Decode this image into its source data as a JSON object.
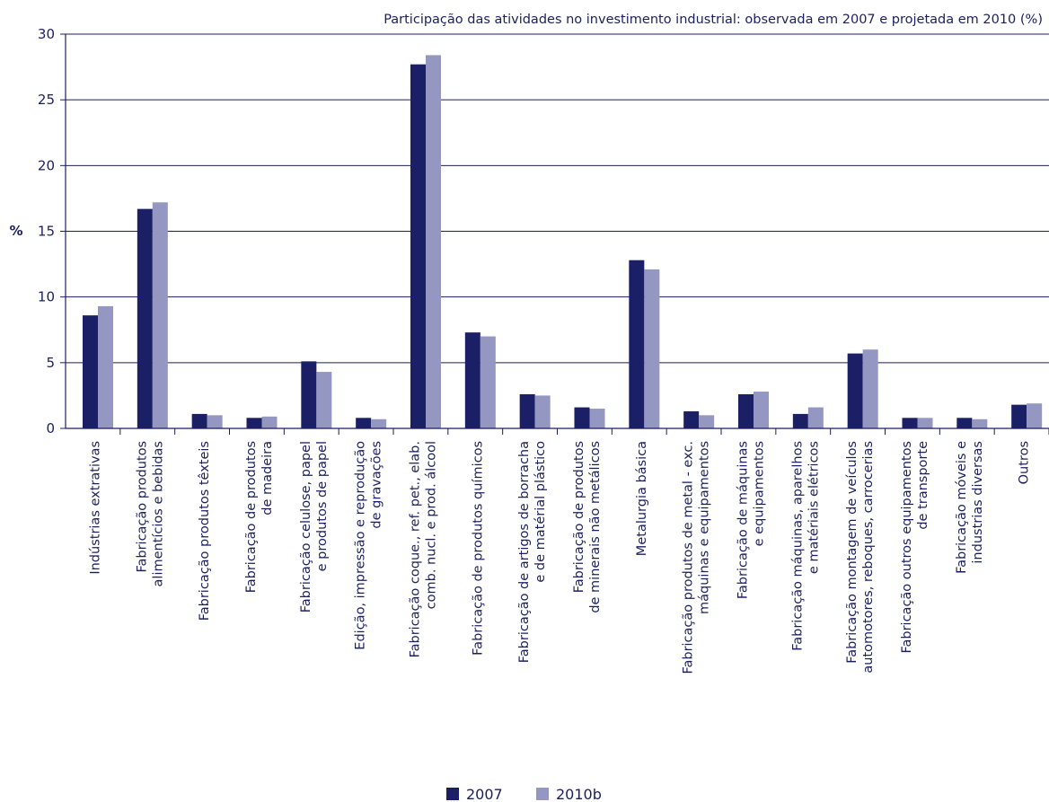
{
  "chart_data": {
    "type": "bar",
    "title": "Participação das atividades no investimento industrial: observada em 2007 e projetada em 2010  (%)",
    "ylabel": "%",
    "ylim": [
      0,
      30
    ],
    "yticks": [
      "0",
      "5",
      "10",
      "15",
      "20",
      "25",
      "30"
    ],
    "grid": true,
    "legend_position": "bottom-center",
    "categories": [
      [
        "Indústrias extrativas"
      ],
      [
        "Fabricação produtos",
        "alimentícios e bebidas"
      ],
      [
        "Fabricação produtos têxteis"
      ],
      [
        "Fabricação de produtos",
        "de madeira"
      ],
      [
        "Fabricação celulose, papel",
        "e produtos de papel"
      ],
      [
        "Edição, impressão e reprodução",
        "de gravações"
      ],
      [
        "Fabricação coque., ref. pet., elab.",
        "comb. nucl. e prod. álcool"
      ],
      [
        "Fabricação de produtos químicos"
      ],
      [
        "Fabricação de artigos de borracha",
        "e de matérial plástico"
      ],
      [
        "Fabricação de produtos",
        "de minerais não metálicos"
      ],
      [
        "Metalurgia básica"
      ],
      [
        "Fabricação produtos de metal - exc.",
        "máquinas e equipamentos"
      ],
      [
        "Fabricação de máquinas",
        "e equipamentos"
      ],
      [
        "Fabricação máquinas, aparelhos",
        "e matériais elétricos"
      ],
      [
        "Fabricação montagem de veículos",
        "automotores, reboques, carrocerias"
      ],
      [
        "Fabricação outros equipamentos",
        "de transporte"
      ],
      [
        "Fabricação móveis e",
        "industrias diversas"
      ],
      [
        "Outros"
      ]
    ],
    "series": [
      {
        "name": "2007",
        "color": "#1b1f66",
        "values": [
          8.6,
          16.7,
          1.1,
          0.8,
          5.1,
          0.8,
          27.7,
          7.3,
          2.6,
          1.6,
          12.8,
          1.3,
          2.6,
          1.1,
          5.7,
          0.8,
          0.8,
          1.8
        ]
      },
      {
        "name": "2010b",
        "color": "#9497c2",
        "values": [
          9.3,
          17.2,
          1.0,
          0.9,
          4.3,
          0.7,
          28.4,
          7.0,
          2.5,
          1.5,
          12.1,
          1.0,
          2.8,
          1.6,
          6.0,
          0.8,
          0.7,
          1.9
        ]
      }
    ]
  }
}
